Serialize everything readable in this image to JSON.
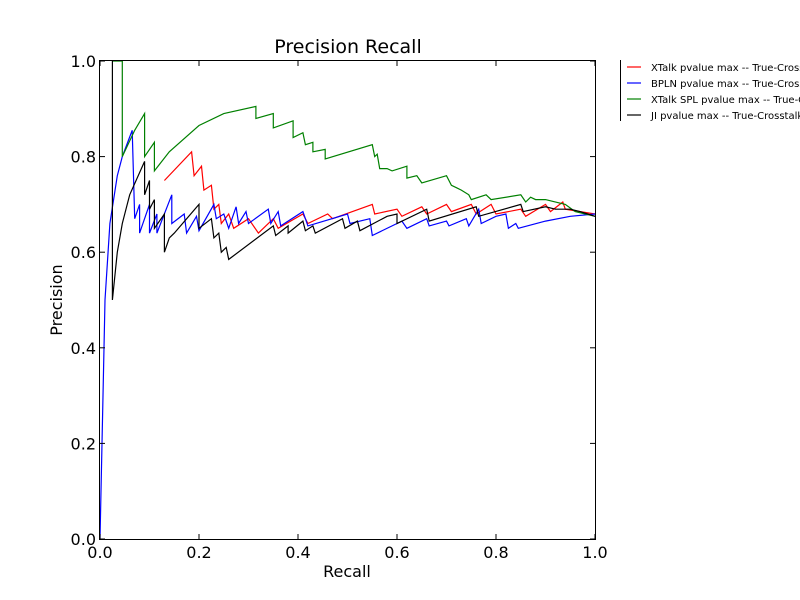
{
  "chart_data": {
    "type": "line",
    "title": "Precision Recall",
    "xlabel": "Recall",
    "ylabel": "Precision",
    "xlim": [
      0.0,
      1.0
    ],
    "ylim": [
      0.0,
      1.0
    ],
    "xticks": [
      0.0,
      0.2,
      0.4,
      0.6,
      0.8,
      1.0
    ],
    "yticks": [
      0.0,
      0.2,
      0.4,
      0.6,
      0.8,
      1.0
    ],
    "tick_labels_x": [
      "0.0",
      "0.2",
      "0.4",
      "0.6",
      "0.8",
      "1.0"
    ],
    "tick_labels_y": [
      "0.0",
      "0.2",
      "0.4",
      "0.6",
      "0.8",
      "1.0"
    ],
    "grid": false,
    "legend_position": "outside-top-right",
    "series": [
      {
        "name": "XTalk pvalue max -- True-Crosstalk",
        "color": "#ff0000",
        "points": [
          [
            0.13,
            0.75
          ],
          [
            0.185,
            0.81
          ],
          [
            0.19,
            0.76
          ],
          [
            0.205,
            0.78
          ],
          [
            0.21,
            0.73
          ],
          [
            0.225,
            0.74
          ],
          [
            0.23,
            0.69
          ],
          [
            0.24,
            0.7
          ],
          [
            0.245,
            0.66
          ],
          [
            0.26,
            0.68
          ],
          [
            0.27,
            0.65
          ],
          [
            0.3,
            0.67
          ],
          [
            0.32,
            0.64
          ],
          [
            0.35,
            0.67
          ],
          [
            0.36,
            0.65
          ],
          [
            0.41,
            0.68
          ],
          [
            0.42,
            0.66
          ],
          [
            0.46,
            0.68
          ],
          [
            0.47,
            0.67
          ],
          [
            0.55,
            0.7
          ],
          [
            0.555,
            0.68
          ],
          [
            0.6,
            0.69
          ],
          [
            0.61,
            0.675
          ],
          [
            0.65,
            0.695
          ],
          [
            0.66,
            0.68
          ],
          [
            0.7,
            0.7
          ],
          [
            0.71,
            0.685
          ],
          [
            0.75,
            0.7
          ],
          [
            0.76,
            0.68
          ],
          [
            0.79,
            0.7
          ],
          [
            0.8,
            0.68
          ],
          [
            0.85,
            0.69
          ],
          [
            0.86,
            0.675
          ],
          [
            0.9,
            0.7
          ],
          [
            0.91,
            0.685
          ],
          [
            0.935,
            0.705
          ],
          [
            0.94,
            0.69
          ],
          [
            0.97,
            0.685
          ],
          [
            1.0,
            0.68
          ]
        ]
      },
      {
        "name": "BPLN pvalue max -- True-Crosstalk",
        "color": "#0000ff",
        "points": [
          [
            0.0,
            0.0
          ],
          [
            0.01,
            0.5
          ],
          [
            0.02,
            0.66
          ],
          [
            0.035,
            0.76
          ],
          [
            0.045,
            0.8
          ],
          [
            0.065,
            0.855
          ],
          [
            0.07,
            0.67
          ],
          [
            0.08,
            0.7
          ],
          [
            0.08,
            0.64
          ],
          [
            0.1,
            0.7
          ],
          [
            0.1,
            0.64
          ],
          [
            0.115,
            0.68
          ],
          [
            0.115,
            0.64
          ],
          [
            0.145,
            0.72
          ],
          [
            0.145,
            0.66
          ],
          [
            0.17,
            0.68
          ],
          [
            0.175,
            0.64
          ],
          [
            0.195,
            0.675
          ],
          [
            0.2,
            0.645
          ],
          [
            0.23,
            0.7
          ],
          [
            0.235,
            0.67
          ],
          [
            0.25,
            0.68
          ],
          [
            0.26,
            0.65
          ],
          [
            0.275,
            0.695
          ],
          [
            0.28,
            0.66
          ],
          [
            0.295,
            0.685
          ],
          [
            0.3,
            0.66
          ],
          [
            0.34,
            0.69
          ],
          [
            0.345,
            0.66
          ],
          [
            0.36,
            0.685
          ],
          [
            0.365,
            0.655
          ],
          [
            0.41,
            0.685
          ],
          [
            0.42,
            0.655
          ],
          [
            0.5,
            0.68
          ],
          [
            0.505,
            0.66
          ],
          [
            0.545,
            0.67
          ],
          [
            0.55,
            0.635
          ],
          [
            0.61,
            0.665
          ],
          [
            0.62,
            0.65
          ],
          [
            0.66,
            0.67
          ],
          [
            0.665,
            0.655
          ],
          [
            0.7,
            0.665
          ],
          [
            0.705,
            0.655
          ],
          [
            0.74,
            0.67
          ],
          [
            0.745,
            0.655
          ],
          [
            0.765,
            0.69
          ],
          [
            0.77,
            0.66
          ],
          [
            0.8,
            0.675
          ],
          [
            0.82,
            0.68
          ],
          [
            0.825,
            0.65
          ],
          [
            0.84,
            0.66
          ],
          [
            0.845,
            0.65
          ],
          [
            0.9,
            0.665
          ],
          [
            0.95,
            0.675
          ],
          [
            1.0,
            0.68
          ]
        ]
      },
      {
        "name": "XTalk SPL pvalue max -- True-Crosstalk",
        "color": "#008000",
        "points": [
          [
            0.025,
            1.0
          ],
          [
            0.045,
            1.0
          ],
          [
            0.045,
            0.8
          ],
          [
            0.07,
            0.855
          ],
          [
            0.09,
            0.89
          ],
          [
            0.09,
            0.8
          ],
          [
            0.11,
            0.83
          ],
          [
            0.11,
            0.77
          ],
          [
            0.14,
            0.81
          ],
          [
            0.2,
            0.865
          ],
          [
            0.25,
            0.89
          ],
          [
            0.315,
            0.905
          ],
          [
            0.315,
            0.88
          ],
          [
            0.35,
            0.89
          ],
          [
            0.35,
            0.86
          ],
          [
            0.39,
            0.875
          ],
          [
            0.39,
            0.84
          ],
          [
            0.41,
            0.85
          ],
          [
            0.415,
            0.825
          ],
          [
            0.43,
            0.83
          ],
          [
            0.43,
            0.81
          ],
          [
            0.455,
            0.815
          ],
          [
            0.455,
            0.795
          ],
          [
            0.55,
            0.825
          ],
          [
            0.555,
            0.8
          ],
          [
            0.56,
            0.805
          ],
          [
            0.565,
            0.775
          ],
          [
            0.58,
            0.775
          ],
          [
            0.59,
            0.77
          ],
          [
            0.62,
            0.78
          ],
          [
            0.62,
            0.755
          ],
          [
            0.64,
            0.76
          ],
          [
            0.65,
            0.745
          ],
          [
            0.7,
            0.76
          ],
          [
            0.71,
            0.74
          ],
          [
            0.72,
            0.735
          ],
          [
            0.73,
            0.73
          ],
          [
            0.745,
            0.72
          ],
          [
            0.75,
            0.71
          ],
          [
            0.78,
            0.72
          ],
          [
            0.79,
            0.71
          ],
          [
            0.85,
            0.72
          ],
          [
            0.86,
            0.705
          ],
          [
            0.87,
            0.715
          ],
          [
            0.88,
            0.71
          ],
          [
            0.9,
            0.71
          ],
          [
            0.94,
            0.7
          ],
          [
            0.96,
            0.685
          ],
          [
            1.0,
            0.675
          ]
        ]
      },
      {
        "name": "JI pvalue max -- True-Crosstalk",
        "color": "#000000",
        "points": [
          [
            0.025,
            1.0
          ],
          [
            0.025,
            0.5
          ],
          [
            0.035,
            0.6
          ],
          [
            0.045,
            0.66
          ],
          [
            0.06,
            0.72
          ],
          [
            0.09,
            0.79
          ],
          [
            0.09,
            0.72
          ],
          [
            0.1,
            0.75
          ],
          [
            0.1,
            0.69
          ],
          [
            0.11,
            0.71
          ],
          [
            0.11,
            0.65
          ],
          [
            0.13,
            0.68
          ],
          [
            0.13,
            0.6
          ],
          [
            0.14,
            0.63
          ],
          [
            0.15,
            0.64
          ],
          [
            0.2,
            0.7
          ],
          [
            0.2,
            0.65
          ],
          [
            0.225,
            0.67
          ],
          [
            0.23,
            0.63
          ],
          [
            0.24,
            0.64
          ],
          [
            0.245,
            0.6
          ],
          [
            0.255,
            0.61
          ],
          [
            0.26,
            0.585
          ],
          [
            0.35,
            0.655
          ],
          [
            0.355,
            0.635
          ],
          [
            0.38,
            0.655
          ],
          [
            0.38,
            0.64
          ],
          [
            0.41,
            0.665
          ],
          [
            0.415,
            0.645
          ],
          [
            0.43,
            0.655
          ],
          [
            0.435,
            0.64
          ],
          [
            0.49,
            0.67
          ],
          [
            0.495,
            0.65
          ],
          [
            0.52,
            0.665
          ],
          [
            0.525,
            0.645
          ],
          [
            0.58,
            0.675
          ],
          [
            0.6,
            0.68
          ],
          [
            0.6,
            0.66
          ],
          [
            0.66,
            0.69
          ],
          [
            0.665,
            0.665
          ],
          [
            0.76,
            0.695
          ],
          [
            0.765,
            0.675
          ],
          [
            0.85,
            0.7
          ],
          [
            0.855,
            0.685
          ],
          [
            0.9,
            0.695
          ],
          [
            0.92,
            0.69
          ],
          [
            0.95,
            0.69
          ],
          [
            0.97,
            0.685
          ],
          [
            1.0,
            0.675
          ]
        ]
      }
    ]
  }
}
